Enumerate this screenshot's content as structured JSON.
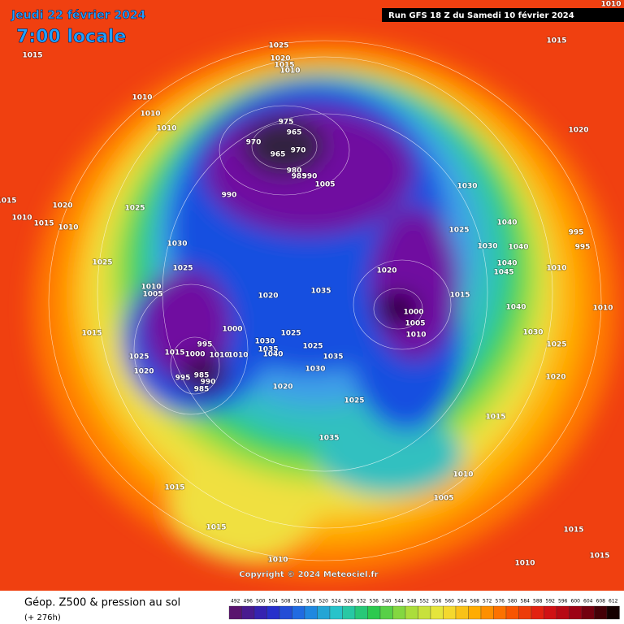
{
  "header": {
    "date": "Jeudi 22 février 2024",
    "time": "7:00 locale",
    "run": "Run GFS 18 Z du Samedi 10 février 2024"
  },
  "pressure_labels": [
    1025,
    1020,
    1015,
    1010,
    1015,
    1015,
    1010,
    1010,
    1010,
    975,
    965,
    970,
    970,
    965,
    1020,
    990,
    1030,
    1015,
    1020,
    1025,
    1010,
    1015,
    1010,
    1025,
    1040,
    995,
    1030,
    995,
    1030,
    1040,
    1025,
    1025,
    1020,
    1040,
    1045,
    1010,
    1010,
    1005,
    1035,
    1020,
    1015,
    1000,
    1040,
    1010,
    1005,
    1000,
    1010,
    1015,
    1025,
    1030,
    1030,
    1035,
    1040,
    995,
    1025,
    1025,
    1015,
    1000,
    1010,
    1010,
    1025,
    1035,
    1020,
    1030,
    1020,
    995,
    990,
    985,
    985,
    1020,
    1025,
    1015,
    1035,
    1010,
    1015,
    1005,
    1015,
    1015,
    1010,
    1015,
    1010,
    1010,
    980,
    985,
    990,
    1005
  ],
  "copyright": "Copyright © 2024 Meteociel.fr",
  "footer": {
    "title": "Géop. Z500 & pression au sol",
    "lead": "(+ 276h)"
  },
  "colorbar": {
    "labels": [
      492,
      496,
      500,
      504,
      508,
      512,
      516,
      520,
      524,
      528,
      532,
      536,
      540,
      544,
      548,
      552,
      556,
      560,
      564,
      568,
      572,
      576,
      580,
      584,
      588,
      592,
      596,
      600,
      604,
      608,
      612
    ]
  }
}
